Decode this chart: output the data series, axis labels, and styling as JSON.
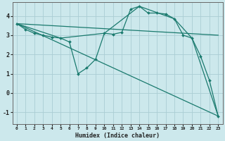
{
  "xlabel": "Humidex (Indice chaleur)",
  "bg_color": "#cce8ec",
  "grid_color": "#aacdd4",
  "line_color": "#1a7a6e",
  "xlim": [
    -0.5,
    23.5
  ],
  "ylim": [
    -1.6,
    4.7
  ],
  "yticks": [
    -1,
    0,
    1,
    2,
    3,
    4
  ],
  "xticks": [
    0,
    1,
    2,
    3,
    4,
    5,
    6,
    7,
    8,
    9,
    10,
    11,
    12,
    13,
    14,
    15,
    16,
    17,
    18,
    19,
    20,
    21,
    22,
    23
  ],
  "series0_x": [
    0,
    1,
    2,
    3,
    4,
    5,
    6,
    7,
    8,
    9,
    10,
    11,
    12,
    13,
    14,
    15,
    16,
    17,
    18,
    19,
    20,
    21,
    22,
    23
  ],
  "series0_y": [
    3.6,
    3.3,
    3.1,
    3.0,
    2.9,
    2.85,
    2.65,
    1.0,
    1.3,
    1.75,
    3.1,
    3.05,
    3.15,
    4.35,
    4.5,
    4.15,
    4.15,
    4.1,
    3.85,
    3.0,
    2.85,
    1.9,
    0.65,
    -1.2
  ],
  "series1_x": [
    0,
    23
  ],
  "series1_y": [
    3.6,
    3.0
  ],
  "series2_x": [
    0,
    5,
    10,
    14,
    18,
    20,
    23
  ],
  "series2_y": [
    3.6,
    2.85,
    3.1,
    4.5,
    3.85,
    2.85,
    -1.2
  ],
  "series3_x": [
    0,
    23
  ],
  "series3_y": [
    3.6,
    -1.2
  ]
}
